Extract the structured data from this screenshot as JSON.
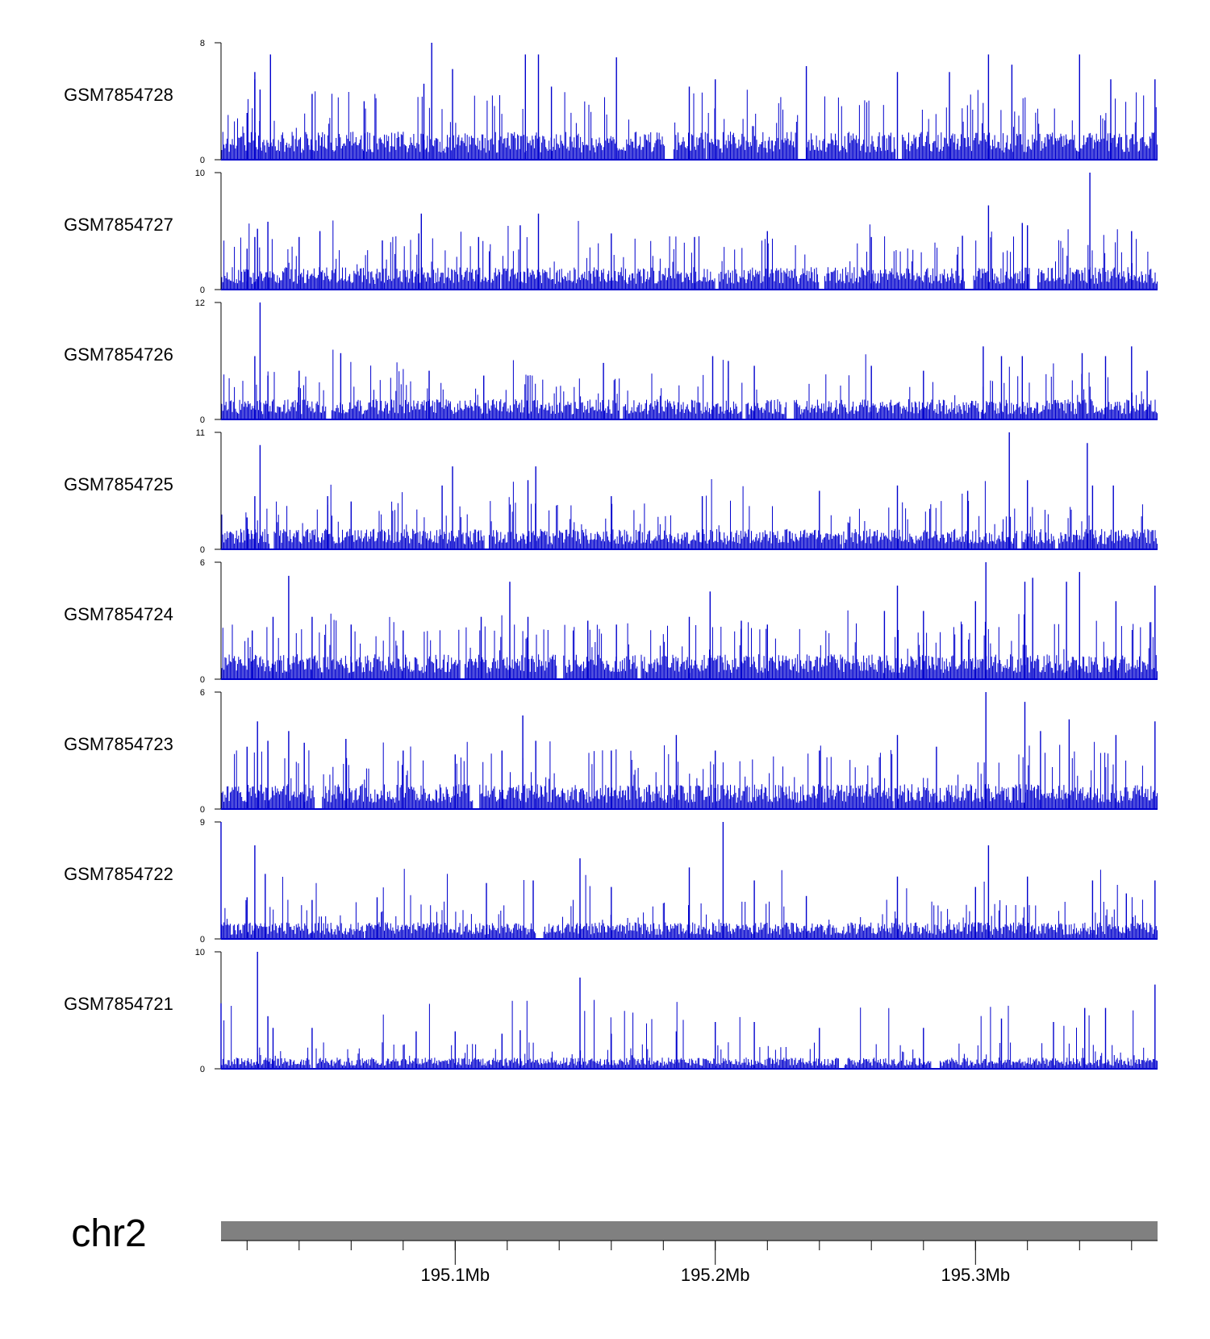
{
  "chart_data": {
    "type": "area",
    "title": "",
    "xlabel": "",
    "ylabel": "",
    "color": "#0000CD",
    "chromosome": "chr2",
    "genomic_range_mb": [
      195.01,
      195.37
    ],
    "x_ticks_mb": [
      195.02,
      195.04,
      195.06,
      195.08,
      195.1,
      195.12,
      195.14,
      195.16,
      195.18,
      195.2,
      195.22,
      195.24,
      195.26,
      195.28,
      195.3,
      195.32,
      195.34,
      195.36
    ],
    "x_tick_labels": [
      {
        "mb": 195.1,
        "label": "195.1Mb"
      },
      {
        "mb": 195.2,
        "label": "195.2Mb"
      },
      {
        "mb": 195.3,
        "label": "195.3Mb"
      }
    ],
    "tracks": [
      {
        "name": "GSM7854728",
        "ymin": 0,
        "ymax": 8,
        "ymin_label": "0",
        "ymax_label": "8",
        "baseline": 1.2,
        "peaks": [
          [
            195.02,
            3.2
          ],
          [
            195.023,
            6.0
          ],
          [
            195.025,
            4.8
          ],
          [
            195.023,
            5.5
          ],
          [
            195.029,
            7.2
          ],
          [
            195.045,
            4.5
          ],
          [
            195.065,
            4.0
          ],
          [
            195.088,
            5.2
          ],
          [
            195.091,
            8.0
          ],
          [
            195.099,
            6.2
          ],
          [
            195.127,
            7.2
          ],
          [
            195.132,
            7.2
          ],
          [
            195.137,
            5.0
          ],
          [
            195.162,
            7.0
          ],
          [
            195.19,
            5.0
          ],
          [
            195.2,
            5.5
          ],
          [
            195.235,
            6.4
          ],
          [
            195.27,
            6.0
          ],
          [
            195.29,
            6.0
          ],
          [
            195.305,
            7.2
          ],
          [
            195.314,
            6.5
          ],
          [
            195.34,
            7.2
          ],
          [
            195.352,
            5.5
          ],
          [
            195.369,
            5.5
          ]
        ]
      },
      {
        "name": "GSM7854727",
        "ymin": 0,
        "ymax": 10,
        "ymin_label": "0",
        "ymax_label": "10",
        "baseline": 1.2,
        "peaks": [
          [
            195.02,
            3.5
          ],
          [
            195.023,
            4.5
          ],
          [
            195.024,
            5.2
          ],
          [
            195.028,
            5.8
          ],
          [
            195.04,
            4.5
          ],
          [
            195.048,
            5.0
          ],
          [
            195.072,
            4.2
          ],
          [
            195.086,
            4.8
          ],
          [
            195.087,
            6.5
          ],
          [
            195.109,
            4.5
          ],
          [
            195.125,
            5.5
          ],
          [
            195.132,
            6.5
          ],
          [
            195.16,
            4.8
          ],
          [
            195.192,
            4.5
          ],
          [
            195.22,
            5.0
          ],
          [
            195.26,
            4.5
          ],
          [
            195.295,
            4.6
          ],
          [
            195.305,
            7.2
          ],
          [
            195.318,
            5.7
          ],
          [
            195.32,
            5.5
          ],
          [
            195.344,
            10.0
          ],
          [
            195.36,
            5.0
          ]
        ]
      },
      {
        "name": "GSM7854726",
        "ymin": 0,
        "ymax": 12,
        "ymin_label": "0",
        "ymax_label": "12",
        "baseline": 1.3,
        "peaks": [
          [
            195.023,
            6.5
          ],
          [
            195.025,
            12.0
          ],
          [
            195.028,
            4.5
          ],
          [
            195.04,
            5.0
          ],
          [
            195.056,
            6.8
          ],
          [
            195.09,
            5.0
          ],
          [
            195.111,
            4.5
          ],
          [
            195.128,
            4.5
          ],
          [
            195.157,
            5.8
          ],
          [
            195.199,
            6.5
          ],
          [
            195.205,
            6.0
          ],
          [
            195.215,
            5.5
          ],
          [
            195.26,
            5.5
          ],
          [
            195.28,
            5.0
          ],
          [
            195.303,
            7.5
          ],
          [
            195.31,
            6.5
          ],
          [
            195.318,
            6.5
          ],
          [
            195.341,
            6.8
          ],
          [
            195.35,
            6.5
          ],
          [
            195.36,
            7.5
          ],
          [
            195.366,
            5.0
          ]
        ]
      },
      {
        "name": "GSM7854725",
        "ymin": 0,
        "ymax": 11,
        "ymin_label": "0",
        "ymax_label": "11",
        "baseline": 1.2,
        "peaks": [
          [
            195.02,
            3.0
          ],
          [
            195.023,
            5.0
          ],
          [
            195.025,
            9.8
          ],
          [
            195.051,
            5.0
          ],
          [
            195.06,
            4.5
          ],
          [
            195.095,
            6.0
          ],
          [
            195.099,
            7.8
          ],
          [
            195.128,
            6.5
          ],
          [
            195.131,
            7.8
          ],
          [
            195.16,
            5.0
          ],
          [
            195.195,
            5.0
          ],
          [
            195.24,
            5.5
          ],
          [
            195.27,
            6.0
          ],
          [
            195.297,
            5.5
          ],
          [
            195.313,
            11.0
          ],
          [
            195.32,
            6.5
          ],
          [
            195.343,
            10.0
          ],
          [
            195.345,
            6.0
          ],
          [
            195.353,
            6.0
          ]
        ]
      },
      {
        "name": "GSM7854724",
        "ymin": 0,
        "ymax": 6,
        "ymin_label": "0",
        "ymax_label": "6",
        "baseline": 0.8,
        "peaks": [
          [
            195.022,
            2.5
          ],
          [
            195.03,
            3.2
          ],
          [
            195.036,
            5.3
          ],
          [
            195.045,
            3.2
          ],
          [
            195.06,
            2.8
          ],
          [
            195.08,
            2.5
          ],
          [
            195.11,
            3.2
          ],
          [
            195.121,
            5.0
          ],
          [
            195.128,
            3.2
          ],
          [
            195.151,
            3.0
          ],
          [
            195.162,
            2.8
          ],
          [
            195.19,
            3.2
          ],
          [
            195.198,
            4.5
          ],
          [
            195.21,
            3.0
          ],
          [
            195.22,
            2.8
          ],
          [
            195.265,
            3.5
          ],
          [
            195.27,
            4.8
          ],
          [
            195.28,
            3.5
          ],
          [
            195.3,
            4.0
          ],
          [
            195.304,
            6.0
          ],
          [
            195.319,
            5.0
          ],
          [
            195.322,
            5.2
          ],
          [
            195.335,
            5.0
          ],
          [
            195.34,
            5.5
          ],
          [
            195.354,
            4.0
          ],
          [
            195.369,
            4.8
          ]
        ]
      },
      {
        "name": "GSM7854723",
        "ymin": 0,
        "ymax": 6,
        "ymin_label": "0",
        "ymax_label": "6",
        "baseline": 0.8,
        "peaks": [
          [
            195.02,
            3.2
          ],
          [
            195.024,
            4.5
          ],
          [
            195.028,
            3.5
          ],
          [
            195.036,
            4.0
          ],
          [
            195.042,
            3.4
          ],
          [
            195.058,
            3.6
          ],
          [
            195.08,
            3.0
          ],
          [
            195.1,
            2.8
          ],
          [
            195.118,
            3.0
          ],
          [
            195.126,
            4.8
          ],
          [
            195.131,
            3.5
          ],
          [
            195.16,
            3.0
          ],
          [
            195.185,
            3.8
          ],
          [
            195.2,
            3.0
          ],
          [
            195.24,
            3.0
          ],
          [
            195.27,
            3.8
          ],
          [
            195.285,
            3.2
          ],
          [
            195.304,
            6.0
          ],
          [
            195.319,
            5.5
          ],
          [
            195.325,
            4.0
          ],
          [
            195.336,
            4.6
          ],
          [
            195.354,
            3.8
          ],
          [
            195.369,
            4.5
          ]
        ]
      },
      {
        "name": "GSM7854722",
        "ymin": 0,
        "ymax": 9,
        "ymin_label": "0",
        "ymax_label": "9",
        "baseline": 0.8,
        "peaks": [
          [
            195.01,
            9.0
          ],
          [
            195.02,
            3.2
          ],
          [
            195.023,
            7.2
          ],
          [
            195.027,
            5.0
          ],
          [
            195.045,
            3.0
          ],
          [
            195.07,
            3.2
          ],
          [
            195.112,
            4.3
          ],
          [
            195.13,
            4.5
          ],
          [
            195.148,
            6.2
          ],
          [
            195.16,
            4.0
          ],
          [
            195.19,
            5.5
          ],
          [
            195.203,
            9.0
          ],
          [
            195.215,
            4.5
          ],
          [
            195.235,
            3.3
          ],
          [
            195.27,
            4.8
          ],
          [
            195.3,
            4.0
          ],
          [
            195.305,
            7.2
          ],
          [
            195.32,
            4.8
          ],
          [
            195.345,
            4.5
          ],
          [
            195.358,
            3.5
          ],
          [
            195.369,
            4.5
          ]
        ]
      },
      {
        "name": "GSM7854721",
        "ymin": 0,
        "ymax": 10,
        "ymin_label": "0",
        "ymax_label": "10",
        "baseline": 0.6,
        "peaks": [
          [
            195.01,
            5.6
          ],
          [
            195.024,
            10.0
          ],
          [
            195.028,
            4.5
          ],
          [
            195.03,
            3.5
          ],
          [
            195.045,
            3.5
          ],
          [
            195.085,
            3.2
          ],
          [
            195.1,
            3.2
          ],
          [
            195.118,
            3.0
          ],
          [
            195.125,
            3.3
          ],
          [
            195.148,
            7.8
          ],
          [
            195.16,
            3.0
          ],
          [
            195.185,
            3.2
          ],
          [
            195.2,
            4.0
          ],
          [
            195.215,
            4.0
          ],
          [
            195.24,
            3.5
          ],
          [
            195.28,
            3.5
          ],
          [
            195.31,
            4.3
          ],
          [
            195.33,
            4.0
          ],
          [
            195.342,
            5.2
          ],
          [
            195.35,
            5.2
          ],
          [
            195.369,
            7.2
          ]
        ]
      }
    ]
  }
}
